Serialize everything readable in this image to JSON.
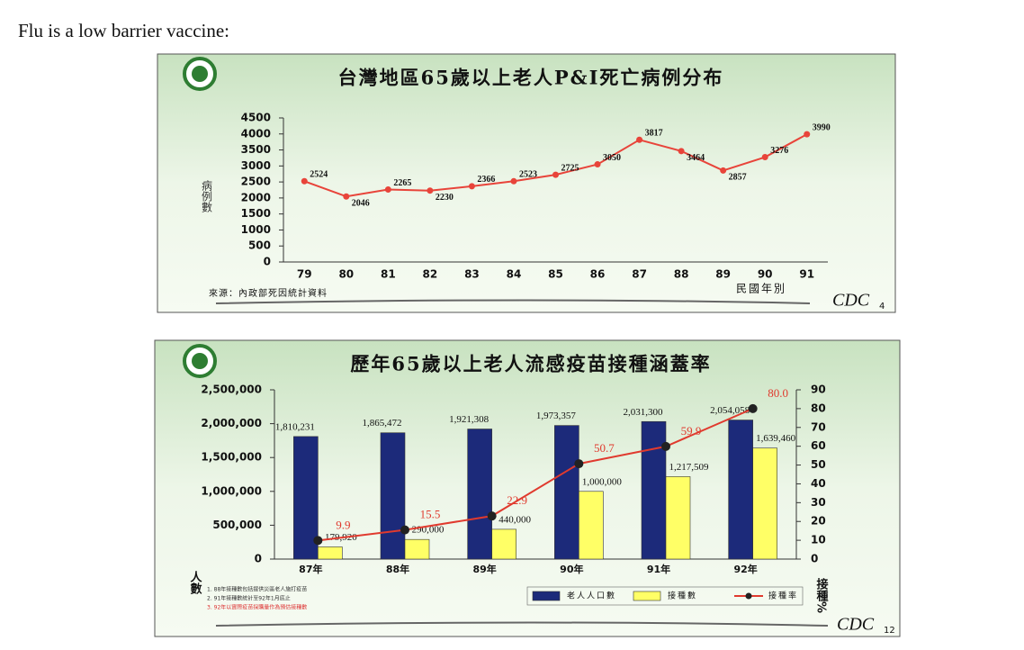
{
  "heading": "Flu is a low barrier vaccine:",
  "chart_data": [
    {
      "type": "line",
      "title": "台灣地區65歲以上老人P&I死亡病例分布",
      "ylabel": "病例數",
      "xlabel": "民國年別",
      "source": "來源：內政部死因統計資料",
      "logo_text": "CDC",
      "page_number": "4",
      "categories": [
        "79",
        "80",
        "81",
        "82",
        "83",
        "84",
        "85",
        "86",
        "87",
        "88",
        "89",
        "90",
        "91"
      ],
      "values": [
        2524,
        2046,
        2265,
        2230,
        2366,
        2523,
        2725,
        3050,
        3817,
        3464,
        2857,
        3276,
        3990
      ],
      "color": "#e8443a",
      "ylim": [
        0,
        4500
      ],
      "yticks": [
        0,
        500,
        1000,
        1500,
        2000,
        2500,
        3000,
        3500,
        4000,
        4500
      ]
    },
    {
      "type": "bar",
      "title": "歷年65歲以上老人流感疫苗接種涵蓋率",
      "ylabel": "人數",
      "y2label": "接種%",
      "logo_text": "CDC",
      "page_number": "12",
      "categories": [
        "87年",
        "88年",
        "89年",
        "90年",
        "91年",
        "92年"
      ],
      "series": [
        {
          "name": "老人人口數",
          "color": "#1c2a7a",
          "values": [
            1810231,
            1865472,
            1921308,
            1973357,
            2031300,
            2054058
          ],
          "value_labels": [
            "1,810,231",
            "1,865,472",
            "1,921,308",
            "1,973,357",
            "2,031,300",
            "2,054,058"
          ]
        },
        {
          "name": "接種數",
          "color": "#ffff66",
          "values": [
            179920,
            290000,
            440000,
            1000000,
            1217509,
            1639460
          ],
          "value_labels": [
            "179,920",
            "290,000",
            "440,000",
            "1,000,000",
            "1,217,509",
            "1,639,460"
          ]
        },
        {
          "name": "接種率",
          "color": "#e03a2e",
          "type": "line",
          "axis": "y2",
          "values": [
            9.9,
            15.5,
            22.9,
            50.7,
            59.9,
            80.0
          ],
          "value_labels": [
            "9.9",
            "15.5",
            "22.9",
            "50.7",
            "59.9",
            "80.0"
          ]
        }
      ],
      "ylim": [
        0,
        2500000
      ],
      "yticks": [
        0,
        {
          "value": 500000,
          "label": "500,000"
        },
        {
          "value": 1000000,
          "label": "1,000,000"
        },
        {
          "value": 1500000,
          "label": "1,500,000"
        },
        {
          "value": 2000000,
          "label": "2,000,000"
        },
        {
          "value": 2500000,
          "label": "2,500,000"
        }
      ],
      "y2lim": [
        0,
        90
      ],
      "y2ticks": [
        0,
        10,
        20,
        30,
        40,
        50,
        60,
        70,
        80,
        90
      ],
      "notes": [
        "1. 88年接種數包括提供災區老人施打疫苗",
        "2. 91年接種數統計至92年1月底止",
        "3. 92年以實際疫苗採購量作為預估接種數"
      ]
    }
  ]
}
